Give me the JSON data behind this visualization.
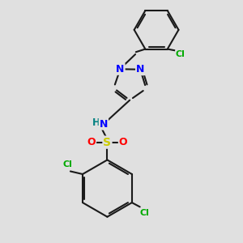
{
  "background_color": "#e0e0e0",
  "bond_color": "#1a1a1a",
  "bond_width": 1.5,
  "atom_colors": {
    "N": "#0000ff",
    "Cl": "#00aa00",
    "S": "#cccc00",
    "O": "#ff0000",
    "H": "#008080",
    "C": "#1a1a1a"
  },
  "figsize": [
    3.0,
    3.0
  ],
  "dpi": 100
}
